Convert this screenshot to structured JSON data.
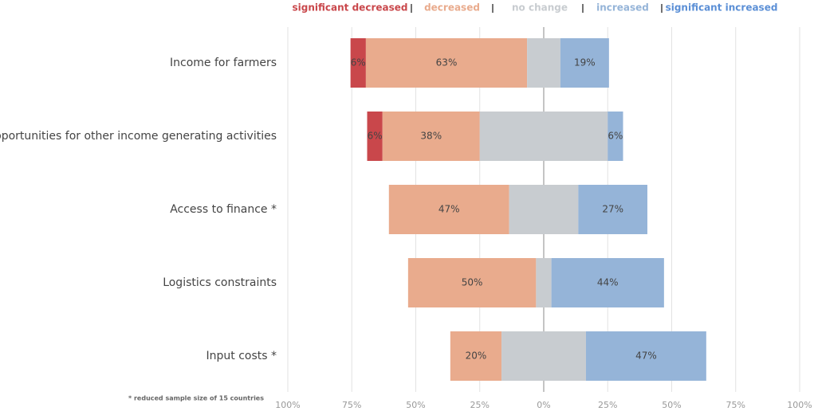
{
  "chart_data": {
    "type": "diverging_bar",
    "categories": [
      "Income for farmers",
      "Opportunities for other income generating activities",
      "Access to finance *",
      "Logistics constraints",
      "Input costs *"
    ],
    "series": [
      {
        "name": "significant decreased",
        "color": "#c9474b",
        "values": [
          6,
          6,
          0,
          0,
          0
        ],
        "value_labels": [
          "6%",
          "6%",
          null,
          null,
          null
        ]
      },
      {
        "name": "decreased",
        "color": "#e9ab8d",
        "values": [
          63,
          38,
          47,
          50,
          20
        ],
        "value_labels": [
          "63%",
          "38%",
          "47%",
          "50%",
          "20%"
        ]
      },
      {
        "name": "no change",
        "color": "#c8ccd0",
        "values": [
          13,
          50,
          27,
          6,
          33
        ],
        "value_labels": [
          null,
          null,
          null,
          null,
          null
        ]
      },
      {
        "name": "increased",
        "color": "#95b4d8",
        "values": [
          19,
          6,
          27,
          44,
          47
        ],
        "value_labels": [
          "19%",
          "6%",
          "27%",
          "44%",
          "47%"
        ]
      },
      {
        "name": "significant increased",
        "color": "#5b8fd6",
        "values": [
          0,
          0,
          0,
          0,
          0
        ],
        "value_labels": [
          null,
          null,
          null,
          null,
          null
        ]
      }
    ],
    "neutral_series": 2,
    "xlim": [
      -100,
      100
    ],
    "xticks": [
      {
        "value": -100,
        "label": "100%"
      },
      {
        "value": -75,
        "label": "75%"
      },
      {
        "value": -50,
        "label": "50%"
      },
      {
        "value": -25,
        "label": "25%"
      },
      {
        "value": 0,
        "label": "0%"
      },
      {
        "value": 25,
        "label": "25%"
      },
      {
        "value": 50,
        "label": "50%"
      },
      {
        "value": 75,
        "label": "75%"
      },
      {
        "value": 100,
        "label": "100%"
      }
    ],
    "grid": true,
    "note": "* reduced sample size of 15 countries"
  }
}
